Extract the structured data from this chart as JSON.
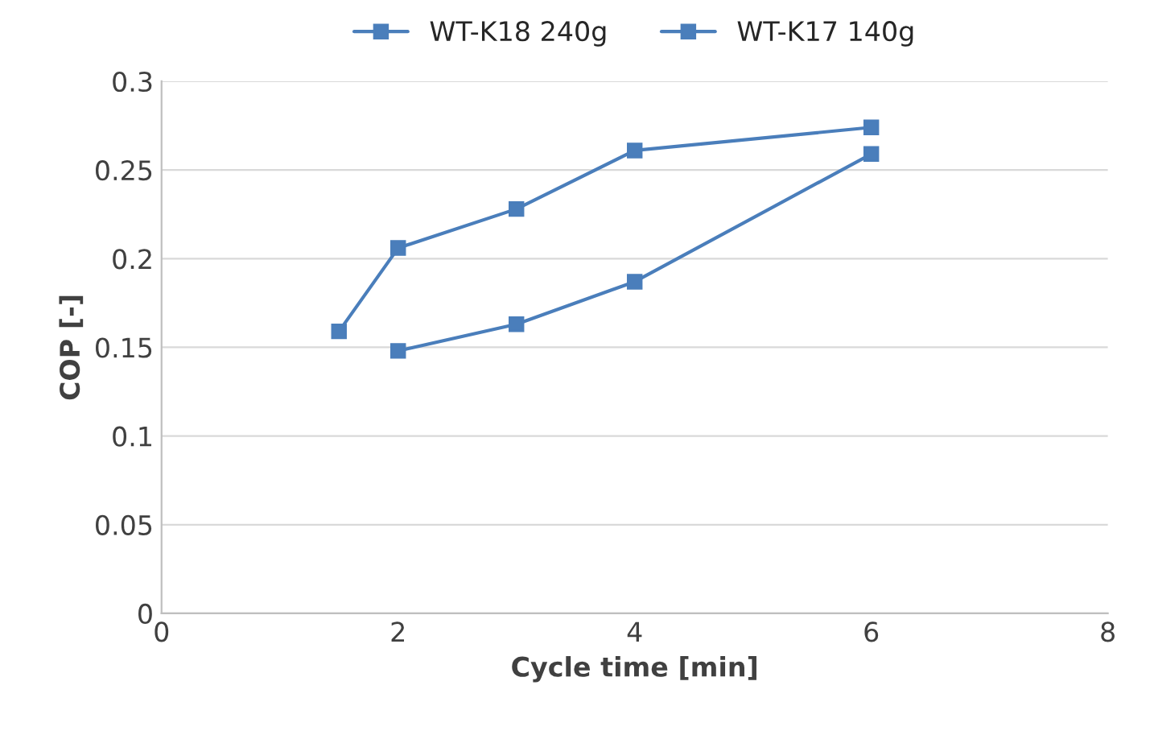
{
  "chart_data": {
    "type": "line",
    "xlabel": "Cycle time [min]",
    "ylabel": "COP [-]",
    "series": [
      {
        "name": "WT-K18 240g",
        "color": "#4a7ebb",
        "x": [
          2,
          3,
          4,
          6
        ],
        "values": [
          0.148,
          0.163,
          0.187,
          0.259
        ]
      },
      {
        "name": "WT-K17 140g",
        "color": "#4a7ebb",
        "x": [
          1.5,
          2,
          3,
          4,
          6
        ],
        "values": [
          0.159,
          0.206,
          0.228,
          0.261,
          0.274
        ]
      }
    ],
    "xlim": [
      0,
      8
    ],
    "xticks": [
      0,
      2,
      4,
      6,
      8
    ],
    "ylim": [
      0,
      0.3
    ],
    "yticks": [
      0,
      {
        "value": 0.05,
        "label": "0.05"
      },
      {
        "value": 0.1,
        "label": "0.1"
      },
      {
        "value": 0.15,
        "label": "0.15"
      },
      {
        "value": 0.2,
        "label": "0.2"
      },
      {
        "value": 0.25,
        "label": "0.25"
      },
      {
        "value": 0.3,
        "label": "0.3"
      }
    ],
    "grid": "y",
    "legend": "top",
    "marker": "square",
    "line_style": "solid"
  }
}
